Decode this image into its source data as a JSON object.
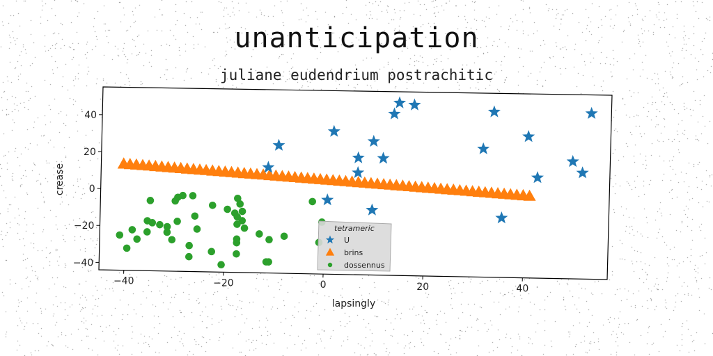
{
  "chart_data": {
    "type": "scatter",
    "title": "unanticipation",
    "subtitle": "juliane eudendrium postrachitic",
    "xlabel": "lapsingly",
    "ylabel": "crease",
    "xlim": [
      -45,
      57
    ],
    "ylim": [
      -44,
      55
    ],
    "xticks": [
      -40,
      -20,
      0,
      20,
      40
    ],
    "yticks": [
      -40,
      -20,
      0,
      20,
      40
    ],
    "xtick_labels": [
      "−40",
      "−20",
      "0",
      "20",
      "40"
    ],
    "ytick_labels": [
      "−40",
      "−20",
      "0",
      "20",
      "40"
    ],
    "grid": false,
    "legend": {
      "title": "tetrameric",
      "position": "lower-center"
    },
    "series": [
      {
        "name": "U",
        "marker": "star",
        "color": "#1f77b4",
        "points": [
          {
            "x": 14.5,
            "y": 49
          },
          {
            "x": 17.5,
            "y": 48
          },
          {
            "x": 13.5,
            "y": 43
          },
          {
            "x": 33.5,
            "y": 45
          },
          {
            "x": 53,
            "y": 45
          },
          {
            "x": 1.5,
            "y": 33
          },
          {
            "x": 40.5,
            "y": 32
          },
          {
            "x": 9.5,
            "y": 28
          },
          {
            "x": -9.5,
            "y": 25
          },
          {
            "x": 31.5,
            "y": 25
          },
          {
            "x": 6.5,
            "y": 19
          },
          {
            "x": 11.5,
            "y": 19
          },
          {
            "x": 49.5,
            "y": 19
          },
          {
            "x": -11.5,
            "y": 13
          },
          {
            "x": 51.5,
            "y": 13
          },
          {
            "x": 6.5,
            "y": 11
          },
          {
            "x": 42.5,
            "y": 10
          },
          {
            "x": 0.5,
            "y": -4
          },
          {
            "x": 9.5,
            "y": -9
          },
          {
            "x": 35.5,
            "y": -12
          }
        ]
      },
      {
        "name": "brins",
        "marker": "triangle",
        "color": "#ff7f0e",
        "line": {
          "x_start": -40.5,
          "x_end": 41,
          "y_start": 13.5,
          "y_end": 0,
          "count": 65
        }
      },
      {
        "name": "dossennus",
        "marker": "circle",
        "color": "#2ca02c",
        "points": [
          {
            "x": -35,
            "y": -6
          },
          {
            "x": -30,
            "y": -6
          },
          {
            "x": -29.5,
            "y": -4
          },
          {
            "x": -28.5,
            "y": -3
          },
          {
            "x": -26.5,
            "y": -3
          },
          {
            "x": -17.5,
            "y": -4
          },
          {
            "x": -17,
            "y": -7
          },
          {
            "x": -22.5,
            "y": -8
          },
          {
            "x": -19.5,
            "y": -10
          },
          {
            "x": -18,
            "y": -12
          },
          {
            "x": -16.5,
            "y": -11
          },
          {
            "x": -17.5,
            "y": -14
          },
          {
            "x": -26,
            "y": -14
          },
          {
            "x": -16.5,
            "y": -16
          },
          {
            "x": -17.5,
            "y": -18
          },
          {
            "x": -35.5,
            "y": -17
          },
          {
            "x": -34.5,
            "y": -18
          },
          {
            "x": -33,
            "y": -19
          },
          {
            "x": -31.5,
            "y": -20
          },
          {
            "x": -29.5,
            "y": -17
          },
          {
            "x": -25.5,
            "y": -21
          },
          {
            "x": -16,
            "y": -20
          },
          {
            "x": -13,
            "y": -23
          },
          {
            "x": -31.5,
            "y": -23
          },
          {
            "x": -35.5,
            "y": -23
          },
          {
            "x": -38.5,
            "y": -22
          },
          {
            "x": -41,
            "y": -25
          },
          {
            "x": -37.5,
            "y": -27
          },
          {
            "x": -30.5,
            "y": -27
          },
          {
            "x": -17.5,
            "y": -26
          },
          {
            "x": -17.5,
            "y": -28
          },
          {
            "x": -11,
            "y": -26
          },
          {
            "x": -8,
            "y": -24
          },
          {
            "x": -27,
            "y": -30
          },
          {
            "x": -39.5,
            "y": -32
          },
          {
            "x": -22.5,
            "y": -33
          },
          {
            "x": -27,
            "y": -36
          },
          {
            "x": -17.5,
            "y": -34
          },
          {
            "x": -11,
            "y": -38
          },
          {
            "x": -11.5,
            "y": -38
          },
          {
            "x": -20.5,
            "y": -40
          },
          {
            "x": -2.5,
            "y": -5
          },
          {
            "x": -0.5,
            "y": -16
          },
          {
            "x": -1,
            "y": -27
          }
        ]
      }
    ]
  }
}
